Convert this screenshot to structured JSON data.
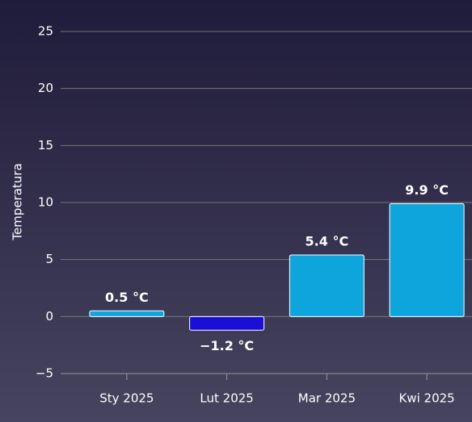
{
  "chart_data": {
    "type": "bar",
    "y_axis_label": "Temperatura",
    "categories": [
      "Sty 2025",
      "Lut 2025",
      "Mar 2025",
      "Kwi 2025"
    ],
    "values": [
      0.5,
      -1.2,
      5.4,
      9.9
    ],
    "value_labels": [
      "0.5 °C",
      "−1.2 °C",
      "5.4 °C",
      "9.9 °C"
    ],
    "colors": [
      "#0ea5dc",
      "#1a0fd6",
      "#0ea5dc",
      "#0ea5dc"
    ],
    "ylim": [
      -5,
      25
    ],
    "yticks": [
      {
        "value": -5,
        "label": "−5"
      },
      0,
      5,
      10,
      15,
      20,
      25
    ],
    "grid": true
  }
}
